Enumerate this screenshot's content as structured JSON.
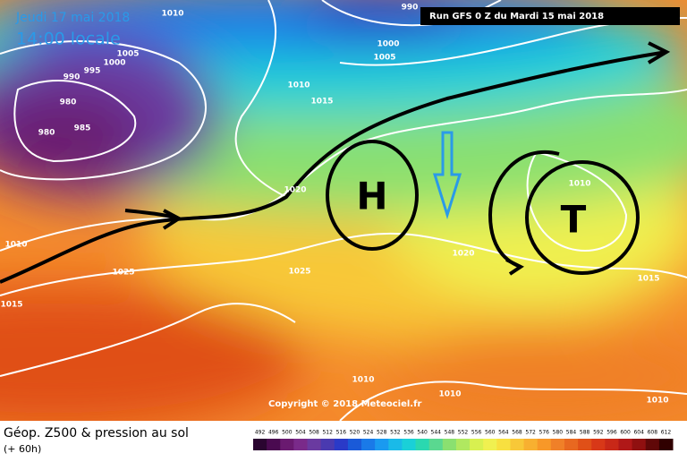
{
  "header": {
    "date": "Jeudi 17 mai 2018",
    "time": "14:00 locale",
    "run": "Run GFS 0 Z du Mardi 15 mai 2018"
  },
  "copyright": "Copyright © 2018 Meteociel.fr",
  "footer": {
    "title": "Géop. Z500 & pression au sol",
    "lead": "(+ 60h)"
  },
  "systems": {
    "high": "H",
    "low": "T"
  },
  "isobar_labels": [
    "1010",
    "990",
    "1000",
    "1005",
    "1005",
    "1000",
    "995",
    "990",
    "980",
    "985",
    "980",
    "1010",
    "1015",
    "1020",
    "1010",
    "1025",
    "1025",
    "1015",
    "1020",
    "1010",
    "1015",
    "1010",
    "1010",
    "1010"
  ],
  "legend": {
    "labels": [
      "492",
      "496",
      "500",
      "504",
      "508",
      "512",
      "516",
      "520",
      "524",
      "528",
      "532",
      "536",
      "540",
      "544",
      "548",
      "552",
      "556",
      "560",
      "564",
      "568",
      "572",
      "576",
      "580",
      "584",
      "588",
      "592",
      "596",
      "600",
      "604",
      "608",
      "612"
    ],
    "colors": [
      "#2a0530",
      "#4a0a50",
      "#6a1a70",
      "#7a2a8a",
      "#6a3aa0",
      "#4a3ab0",
      "#2a3ac8",
      "#1a5ad8",
      "#1a7ae8",
      "#1a9af0",
      "#1abae8",
      "#1ad0d8",
      "#2ad8b0",
      "#5ad890",
      "#8ae070",
      "#b0e860",
      "#d8f050",
      "#f0f050",
      "#f8e040",
      "#f8c838",
      "#f8b030",
      "#f89828",
      "#f08028",
      "#e86820",
      "#e05018",
      "#d83818",
      "#c82818",
      "#b01818",
      "#901010",
      "#600808",
      "#300000"
    ]
  }
}
